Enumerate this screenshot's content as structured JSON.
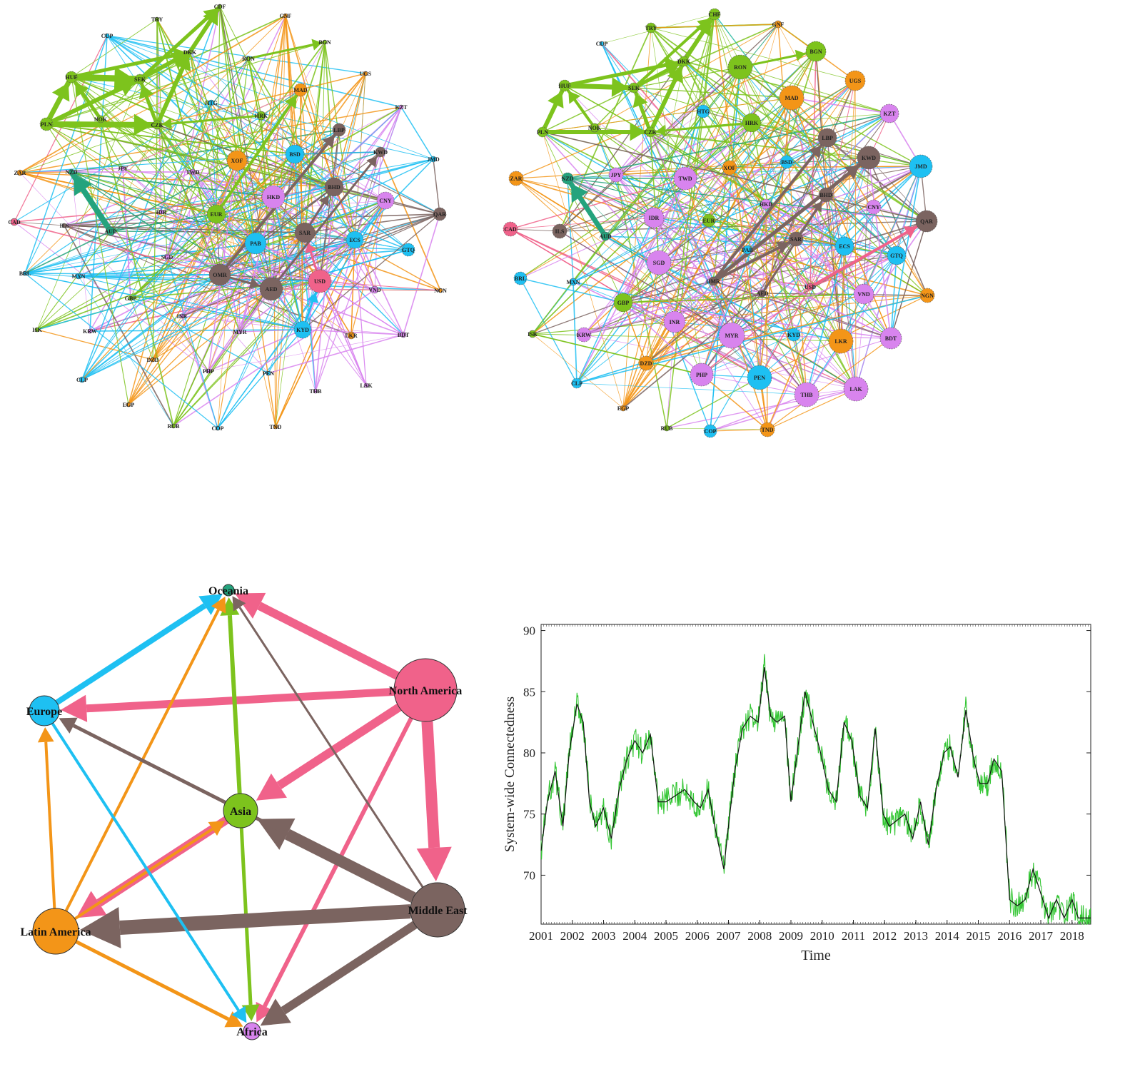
{
  "colors": {
    "Europe_green": "#7dc31d",
    "North_America": "#f0628a",
    "Latin_America": "#f39518",
    "Middle_East": "#7b6460",
    "Asia": "#d884ee",
    "Europe_blue": "#1ec0f2",
    "Oceania": "#24a37d",
    "line_raw": "#35c635",
    "line_smooth": "#111111"
  },
  "networks": [
    {
      "id": "currency-network-full",
      "nodes": [
        {
          "label": "TRY",
          "color": "#7dc31d",
          "r": 3
        },
        {
          "label": "CDF",
          "color": "#7dc31d",
          "r": 3
        },
        {
          "label": "GNF",
          "color": "#f39518",
          "r": 3
        },
        {
          "label": "CUP",
          "color": "#1ec0f2",
          "r": 3
        },
        {
          "label": "BGN",
          "color": "#7dc31d",
          "r": 3
        },
        {
          "label": "RON",
          "color": "#7dc31d",
          "r": 3
        },
        {
          "label": "DKK",
          "color": "#7dc31d",
          "r": 3
        },
        {
          "label": "UGS",
          "color": "#f39518",
          "r": 3
        },
        {
          "label": "HUF",
          "color": "#7dc31d",
          "r": 8
        },
        {
          "label": "SEK",
          "color": "#7dc31d",
          "r": 7
        },
        {
          "label": "MAD",
          "color": "#f39518",
          "r": 9
        },
        {
          "label": "KZT",
          "color": "#d884ee",
          "r": 3
        },
        {
          "label": "HTG",
          "color": "#1ec0f2",
          "r": 4
        },
        {
          "label": "HRK",
          "color": "#7dc31d",
          "r": 6
        },
        {
          "label": "NOK",
          "color": "#7dc31d",
          "r": 5
        },
        {
          "label": "CZK",
          "color": "#7dc31d",
          "r": 6
        },
        {
          "label": "PLN",
          "color": "#7dc31d",
          "r": 9
        },
        {
          "label": "LBP",
          "color": "#7b6460",
          "r": 9
        },
        {
          "label": "KWD",
          "color": "#7b6460",
          "r": 7
        },
        {
          "label": "BSD",
          "color": "#1ec0f2",
          "r": 13
        },
        {
          "label": "XOF",
          "color": "#f39518",
          "r": 14
        },
        {
          "label": "JMD",
          "color": "#1ec0f2",
          "r": 4
        },
        {
          "label": "ZAR",
          "color": "#f39518",
          "r": 4
        },
        {
          "label": "NZD",
          "color": "#24a37d",
          "r": 4
        },
        {
          "label": "JPY",
          "color": "#d884ee",
          "r": 3
        },
        {
          "label": "TWD",
          "color": "#d884ee",
          "r": 4
        },
        {
          "label": "BHD",
          "color": "#7b6460",
          "r": 13
        },
        {
          "label": "HKD",
          "color": "#d884ee",
          "r": 16
        },
        {
          "label": "CNY",
          "color": "#d884ee",
          "r": 12
        },
        {
          "label": "QAR",
          "color": "#7b6460",
          "r": 9
        },
        {
          "label": "IDR",
          "color": "#d884ee",
          "r": 3
        },
        {
          "label": "EUR",
          "color": "#7dc31d",
          "r": 13
        },
        {
          "label": "CAD",
          "color": "#f0628a",
          "r": 5
        },
        {
          "label": "ILS",
          "color": "#7b6460",
          "r": 3
        },
        {
          "label": "AUD",
          "color": "#24a37d",
          "r": 6
        },
        {
          "label": "SAR",
          "color": "#7b6460",
          "r": 14
        },
        {
          "label": "PAB",
          "color": "#1ec0f2",
          "r": 15
        },
        {
          "label": "ECS",
          "color": "#1ec0f2",
          "r": 12
        },
        {
          "label": "SGD",
          "color": "#d884ee",
          "r": 4
        },
        {
          "label": "GTQ",
          "color": "#1ec0f2",
          "r": 9
        },
        {
          "label": "BRL",
          "color": "#1ec0f2",
          "r": 3
        },
        {
          "label": "MXN",
          "color": "#1ec0f2",
          "r": 4
        },
        {
          "label": "OMR",
          "color": "#7b6460",
          "r": 15
        },
        {
          "label": "USD",
          "color": "#f0628a",
          "r": 16
        },
        {
          "label": "AED",
          "color": "#7b6460",
          "r": 16
        },
        {
          "label": "VND",
          "color": "#d884ee",
          "r": 5
        },
        {
          "label": "NGN",
          "color": "#f39518",
          "r": 3
        },
        {
          "label": "GBP",
          "color": "#7dc31d",
          "r": 3
        },
        {
          "label": "INR",
          "color": "#d884ee",
          "r": 3
        },
        {
          "label": "ISK",
          "color": "#7dc31d",
          "r": 3
        },
        {
          "label": "KRW",
          "color": "#d884ee",
          "r": 3
        },
        {
          "label": "MYR",
          "color": "#d884ee",
          "r": 3
        },
        {
          "label": "KYD",
          "color": "#1ec0f2",
          "r": 12
        },
        {
          "label": "LKR",
          "color": "#f39518",
          "r": 5
        },
        {
          "label": "BDT",
          "color": "#d884ee",
          "r": 4
        },
        {
          "label": "DZD",
          "color": "#f39518",
          "r": 3
        },
        {
          "label": "PHP",
          "color": "#d884ee",
          "r": 3
        },
        {
          "label": "PEN",
          "color": "#1ec0f2",
          "r": 3
        },
        {
          "label": "CLP",
          "color": "#1ec0f2",
          "r": 4
        },
        {
          "label": "THB",
          "color": "#d884ee",
          "r": 3
        },
        {
          "label": "LAK",
          "color": "#d884ee",
          "r": 3
        },
        {
          "label": "EGP",
          "color": "#f39518",
          "r": 3
        },
        {
          "label": "RUB",
          "color": "#7dc31d",
          "r": 3
        },
        {
          "label": "COP",
          "color": "#1ec0f2",
          "r": 3
        },
        {
          "label": "TND",
          "color": "#f39518",
          "r": 3
        }
      ]
    },
    {
      "id": "currency-network-pruned",
      "nodes": [
        {
          "label": "TRY",
          "color": "#7dc31d",
          "r": 7
        },
        {
          "label": "CHF",
          "color": "#7dc31d",
          "r": 8
        },
        {
          "label": "GNF",
          "color": "#f39518",
          "r": 5
        },
        {
          "label": "CUP",
          "color": "#1ec0f2",
          "r": 3
        },
        {
          "label": "BGN",
          "color": "#7dc31d",
          "r": 14
        },
        {
          "label": "RON",
          "color": "#7dc31d",
          "r": 17
        },
        {
          "label": "DKK",
          "color": "#7dc31d",
          "r": 7
        },
        {
          "label": "UGS",
          "color": "#f39518",
          "r": 14
        },
        {
          "label": "HUF",
          "color": "#7dc31d",
          "r": 8
        },
        {
          "label": "SEK",
          "color": "#7dc31d",
          "r": 7
        },
        {
          "label": "MAD",
          "color": "#f39518",
          "r": 17
        },
        {
          "label": "KZT",
          "color": "#d884ee",
          "r": 13
        },
        {
          "label": "HTG",
          "color": "#1ec0f2",
          "r": 9
        },
        {
          "label": "HRK",
          "color": "#7dc31d",
          "r": 13
        },
        {
          "label": "NOK",
          "color": "#7dc31d",
          "r": 6
        },
        {
          "label": "CZK",
          "color": "#7dc31d",
          "r": 7
        },
        {
          "label": "PLN",
          "color": "#7dc31d",
          "r": 7
        },
        {
          "label": "LBP",
          "color": "#7b6460",
          "r": 13
        },
        {
          "label": "KWD",
          "color": "#7b6460",
          "r": 16
        },
        {
          "label": "JMD",
          "color": "#1ec0f2",
          "r": 16
        },
        {
          "label": "ZAR",
          "color": "#f39518",
          "r": 10
        },
        {
          "label": "NZD",
          "color": "#24a37d",
          "r": 8
        },
        {
          "label": "JPY",
          "color": "#d884ee",
          "r": 10
        },
        {
          "label": "TWD",
          "color": "#d884ee",
          "r": 16
        },
        {
          "label": "XOF",
          "color": "#f39518",
          "r": 10
        },
        {
          "label": "BSD",
          "color": "#1ec0f2",
          "r": 9
        },
        {
          "label": "BHD",
          "color": "#7b6460",
          "r": 10
        },
        {
          "label": "CNY",
          "color": "#d884ee",
          "r": 10
        },
        {
          "label": "QAR",
          "color": "#7b6460",
          "r": 15
        },
        {
          "label": "IDR",
          "color": "#d884ee",
          "r": 14
        },
        {
          "label": "HKD",
          "color": "#d884ee",
          "r": 7
        },
        {
          "label": "EUR",
          "color": "#7dc31d",
          "r": 9
        },
        {
          "label": "CAD",
          "color": "#f0628a",
          "r": 10
        },
        {
          "label": "ILS",
          "color": "#7b6460",
          "r": 10
        },
        {
          "label": "AUD",
          "color": "#24a37d",
          "r": 6
        },
        {
          "label": "SAR",
          "color": "#7b6460",
          "r": 10
        },
        {
          "label": "PAB",
          "color": "#1ec0f2",
          "r": 6
        },
        {
          "label": "ECS",
          "color": "#1ec0f2",
          "r": 13
        },
        {
          "label": "GTQ",
          "color": "#1ec0f2",
          "r": 13
        },
        {
          "label": "SGD",
          "color": "#d884ee",
          "r": 17
        },
        {
          "label": "BRL",
          "color": "#1ec0f2",
          "r": 9
        },
        {
          "label": "MXN",
          "color": "#1ec0f2",
          "r": 5
        },
        {
          "label": "OMR",
          "color": "#7b6460",
          "r": 6
        },
        {
          "label": "USD",
          "color": "#f0628a",
          "r": 5
        },
        {
          "label": "AED",
          "color": "#7b6460",
          "r": 5
        },
        {
          "label": "VND",
          "color": "#d884ee",
          "r": 14
        },
        {
          "label": "NGN",
          "color": "#f39518",
          "r": 10
        },
        {
          "label": "GBP",
          "color": "#7dc31d",
          "r": 13
        },
        {
          "label": "INR",
          "color": "#d884ee",
          "r": 15
        },
        {
          "label": "ISK",
          "color": "#7dc31d",
          "r": 5
        },
        {
          "label": "KRW",
          "color": "#d884ee",
          "r": 10
        },
        {
          "label": "MYR",
          "color": "#d884ee",
          "r": 18
        },
        {
          "label": "KYD",
          "color": "#1ec0f2",
          "r": 9
        },
        {
          "label": "LKR",
          "color": "#f39518",
          "r": 17
        },
        {
          "label": "BDT",
          "color": "#d884ee",
          "r": 15
        },
        {
          "label": "DZD",
          "color": "#f39518",
          "r": 10
        },
        {
          "label": "PHP",
          "color": "#d884ee",
          "r": 16
        },
        {
          "label": "PEN",
          "color": "#1ec0f2",
          "r": 17
        },
        {
          "label": "CLP",
          "color": "#1ec0f2",
          "r": 7
        },
        {
          "label": "THB",
          "color": "#d884ee",
          "r": 17
        },
        {
          "label": "LAK",
          "color": "#d884ee",
          "r": 17
        },
        {
          "label": "EGP",
          "color": "#f39518",
          "r": 4
        },
        {
          "label": "RUB",
          "color": "#7dc31d",
          "r": 4
        },
        {
          "label": "COP",
          "color": "#1ec0f2",
          "r": 9
        },
        {
          "label": "TND",
          "color": "#f39518",
          "r": 10
        }
      ]
    }
  ],
  "regions": {
    "nodes": [
      {
        "label": "Oceania",
        "color": "#24a37d",
        "r": 8
      },
      {
        "label": "Europe",
        "color": "#1ec0f2",
        "r": 21
      },
      {
        "label": "North America",
        "color": "#f0628a",
        "r": 44
      },
      {
        "label": "Asia",
        "color": "#7dc31d",
        "r": 24
      },
      {
        "label": "Latin America",
        "color": "#f39518",
        "r": 32
      },
      {
        "label": "Middle East",
        "color": "#7b6460",
        "r": 38
      },
      {
        "label": "Africa",
        "color": "#d884ee",
        "r": 12
      }
    ],
    "edges": [
      {
        "from": "Europe",
        "to": "Oceania",
        "color": "#1ec0f2",
        "w": 8
      },
      {
        "from": "North America",
        "to": "Oceania",
        "color": "#f0628a",
        "w": 12
      },
      {
        "from": "North America",
        "to": "Europe",
        "color": "#f0628a",
        "w": 11
      },
      {
        "from": "North America",
        "to": "Asia",
        "color": "#f0628a",
        "w": 12
      },
      {
        "from": "North America",
        "to": "Middle East",
        "color": "#f0628a",
        "w": 16
      },
      {
        "from": "North America",
        "to": "Africa",
        "color": "#f0628a",
        "w": 6
      },
      {
        "from": "Asia",
        "to": "Oceania",
        "color": "#7dc31d",
        "w": 6
      },
      {
        "from": "Asia",
        "to": "Africa",
        "color": "#7dc31d",
        "w": 5
      },
      {
        "from": "Asia",
        "to": "Latin America",
        "color": "#f0628a",
        "w": 12
      },
      {
        "from": "Latin America",
        "to": "Asia",
        "color": "#f39518",
        "w": 4
      },
      {
        "from": "Latin America",
        "to": "Oceania",
        "color": "#f39518",
        "w": 4
      },
      {
        "from": "Latin America",
        "to": "Europe",
        "color": "#f39518",
        "w": 4
      },
      {
        "from": "Latin America",
        "to": "Africa",
        "color": "#f39518",
        "w": 5
      },
      {
        "from": "Middle East",
        "to": "Asia",
        "color": "#7b6460",
        "w": 16
      },
      {
        "from": "Middle East",
        "to": "Latin America",
        "color": "#7b6460",
        "w": 20
      },
      {
        "from": "Middle East",
        "to": "Europe",
        "color": "#7b6460",
        "w": 5
      },
      {
        "from": "Middle East",
        "to": "Oceania",
        "color": "#7b6460",
        "w": 3
      },
      {
        "from": "Middle East",
        "to": "Africa",
        "color": "#7b6460",
        "w": 12
      },
      {
        "from": "Europe",
        "to": "Africa",
        "color": "#1ec0f2",
        "w": 4
      }
    ]
  },
  "chart_data": {
    "type": "line",
    "xlabel": "Time",
    "ylabel": "System-wide Connectedness",
    "xticks": [
      "2001",
      "2002",
      "2003",
      "2004",
      "2005",
      "2006",
      "2007",
      "2008",
      "2009",
      "2010",
      "2011",
      "2012",
      "2013",
      "2014",
      "2015",
      "2016",
      "2017",
      "2018"
    ],
    "yticks": [
      70,
      75,
      80,
      85,
      90
    ],
    "xlim": [
      2001,
      2018.6
    ],
    "ylim": [
      66,
      90.5
    ],
    "series": [
      {
        "style": "smoothed",
        "x": [
          2001.0,
          2001.2,
          2001.45,
          2001.7,
          2001.9,
          2002.15,
          2002.35,
          2002.55,
          2002.75,
          2003.0,
          2003.25,
          2003.5,
          2003.75,
          2004.0,
          2004.25,
          2004.5,
          2004.75,
          2005.0,
          2005.3,
          2005.6,
          2005.9,
          2006.1,
          2006.35,
          2006.6,
          2006.85,
          2007.0,
          2007.2,
          2007.45,
          2007.7,
          2007.95,
          2008.15,
          2008.35,
          2008.55,
          2008.8,
          2009.0,
          2009.2,
          2009.45,
          2009.7,
          2009.95,
          2010.2,
          2010.45,
          2010.7,
          2010.95,
          2011.2,
          2011.45,
          2011.7,
          2011.95,
          2012.15,
          2012.4,
          2012.65,
          2012.9,
          2013.15,
          2013.4,
          2013.65,
          2013.9,
          2014.1,
          2014.35,
          2014.6,
          2014.85,
          2015.05,
          2015.3,
          2015.5,
          2015.75,
          2016.0,
          2016.25,
          2016.5,
          2016.75,
          2017.0,
          2017.25,
          2017.5,
          2017.75,
          2018.0,
          2018.2,
          2018.45,
          2018.6
        ],
        "y": [
          72,
          76,
          78.5,
          74,
          80,
          84,
          82.5,
          76,
          74,
          75.5,
          73,
          77,
          79.5,
          81,
          80,
          81.5,
          76,
          76,
          76.5,
          77,
          76,
          75.5,
          77,
          73.5,
          70.5,
          74,
          78.5,
          82,
          83,
          82.5,
          87,
          83,
          82.5,
          83,
          76,
          80,
          85,
          82.5,
          80,
          77,
          76,
          82.5,
          81,
          76.5,
          75.5,
          82,
          75,
          74,
          74.5,
          75,
          73,
          76,
          72.5,
          77,
          80,
          80.5,
          78,
          83.5,
          79.5,
          77.5,
          77.5,
          79.5,
          78.5,
          68,
          67.5,
          68,
          70.5,
          68.5,
          66.5,
          68,
          66.5,
          68,
          66.5,
          66.5,
          66.5
        ]
      }
    ]
  }
}
